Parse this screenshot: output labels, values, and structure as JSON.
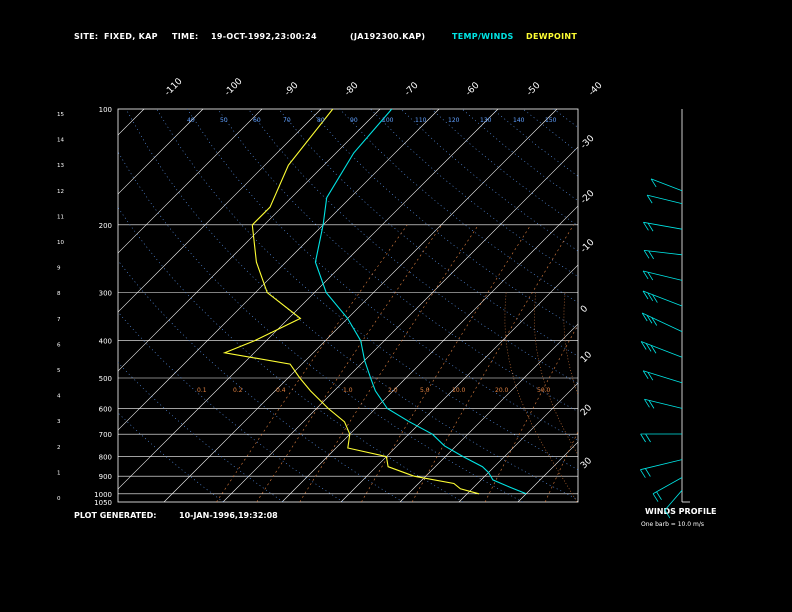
{
  "header": {
    "site_label": "SITE:",
    "site_value": "FIXED, KAP",
    "time_label": "TIME:",
    "time_value": "19-OCT-1992,23:00:24",
    "file_id": "(JA192300.KAP)",
    "legend_temp": "TEMP/WINDS",
    "legend_dew": "DEWPOINT"
  },
  "footer": {
    "generated_label": "PLOT GENERATED:",
    "generated_value": "10-JAN-1996,19:32:08",
    "winds_title": "WINDS PROFILE",
    "winds_note": "One barb = 10.0 m/s"
  },
  "colors": {
    "temp": "#00e5e5",
    "dew": "#ffff33",
    "grid": "#ffffff",
    "mixing": "#e08040",
    "adiabat": "#60a0ff"
  },
  "chart_data": {
    "type": "line",
    "title": "",
    "xlabel": "",
    "ylabel": "",
    "grid": true,
    "pressure_levels": [
      {
        "p": 100,
        "label": "100"
      },
      {
        "p": 200,
        "label": "200"
      },
      {
        "p": 300,
        "label": "300"
      },
      {
        "p": 400,
        "label": "400"
      },
      {
        "p": 500,
        "label": "500"
      },
      {
        "p": 600,
        "label": "600"
      },
      {
        "p": 700,
        "label": "700"
      },
      {
        "p": 800,
        "label": "800"
      },
      {
        "p": 900,
        "label": "900"
      },
      {
        "p": 1000,
        "label": "1000"
      },
      {
        "p": 1050,
        "label": "1050"
      }
    ],
    "height_ticks": [
      "0",
      "1",
      "2",
      "3",
      "4",
      "5",
      "6",
      "7",
      "8",
      "9",
      "10",
      "11",
      "12",
      "13",
      "14",
      "15"
    ],
    "temp_labels_top": [
      "-110",
      "-100",
      "-90",
      "-80",
      "-70",
      "-60",
      "-50",
      "-40"
    ],
    "temp_labels_right": [
      "-30",
      "-20",
      "-10",
      "0",
      "10",
      "20",
      "30"
    ],
    "theta_labels": [
      "40",
      "50",
      "60",
      "70",
      "80",
      "90",
      "100",
      "110",
      "120",
      "130",
      "140",
      "150"
    ],
    "mixing_labels": [
      "0.1",
      "0.2",
      "0.4",
      "1.0",
      "2.0",
      "5.0",
      "10.0",
      "20.0",
      "50.0"
    ],
    "series": [
      {
        "name": "TEMP/WINDS",
        "points": [
          [
            -78,
            100
          ],
          [
            -77,
            130
          ],
          [
            -74,
            170
          ],
          [
            -70,
            200
          ],
          [
            -65,
            250
          ],
          [
            -58,
            300
          ],
          [
            -50,
            350
          ],
          [
            -44,
            400
          ],
          [
            -40,
            450
          ],
          [
            -36,
            500
          ],
          [
            -33,
            540
          ],
          [
            -28,
            600
          ],
          [
            -22,
            650
          ],
          [
            -16,
            700
          ],
          [
            -12,
            750
          ],
          [
            -7,
            800
          ],
          [
            -2,
            850
          ],
          [
            0,
            880
          ],
          [
            2,
            920
          ],
          [
            6,
            960
          ],
          [
            10,
            1000
          ]
        ]
      },
      {
        "name": "DEWPOINT",
        "points": [
          [
            -88,
            100
          ],
          [
            -86,
            140
          ],
          [
            -82,
            180
          ],
          [
            -82,
            200
          ],
          [
            -75,
            250
          ],
          [
            -68,
            300
          ],
          [
            -58,
            350
          ],
          [
            -62,
            400
          ],
          [
            -65,
            430
          ],
          [
            -52,
            460
          ],
          [
            -48,
            500
          ],
          [
            -44,
            540
          ],
          [
            -38,
            600
          ],
          [
            -33,
            650
          ],
          [
            -30,
            700
          ],
          [
            -28,
            760
          ],
          [
            -20,
            800
          ],
          [
            -18,
            850
          ],
          [
            -12,
            900
          ],
          [
            -4,
            940
          ],
          [
            -2,
            970
          ],
          [
            2,
            1000
          ]
        ]
      }
    ],
    "winds": [
      {
        "h": 12.0,
        "speed": 12,
        "dir": 300
      },
      {
        "h": 11.5,
        "speed": 14,
        "dir": 290
      },
      {
        "h": 10.5,
        "speed": 18,
        "dir": 285
      },
      {
        "h": 9.5,
        "speed": 16,
        "dir": 280
      },
      {
        "h": 8.5,
        "speed": 20,
        "dir": 290
      },
      {
        "h": 7.5,
        "speed": 25,
        "dir": 300
      },
      {
        "h": 6.5,
        "speed": 30,
        "dir": 305
      },
      {
        "h": 5.5,
        "speed": 28,
        "dir": 300
      },
      {
        "h": 4.5,
        "speed": 22,
        "dir": 295
      },
      {
        "h": 3.5,
        "speed": 18,
        "dir": 290
      },
      {
        "h": 2.5,
        "speed": 20,
        "dir": 270
      },
      {
        "h": 1.5,
        "speed": 24,
        "dir": 250
      },
      {
        "h": 0.8,
        "speed": 15,
        "dir": 230
      },
      {
        "h": 0.3,
        "speed": 10,
        "dir": 210
      }
    ]
  }
}
